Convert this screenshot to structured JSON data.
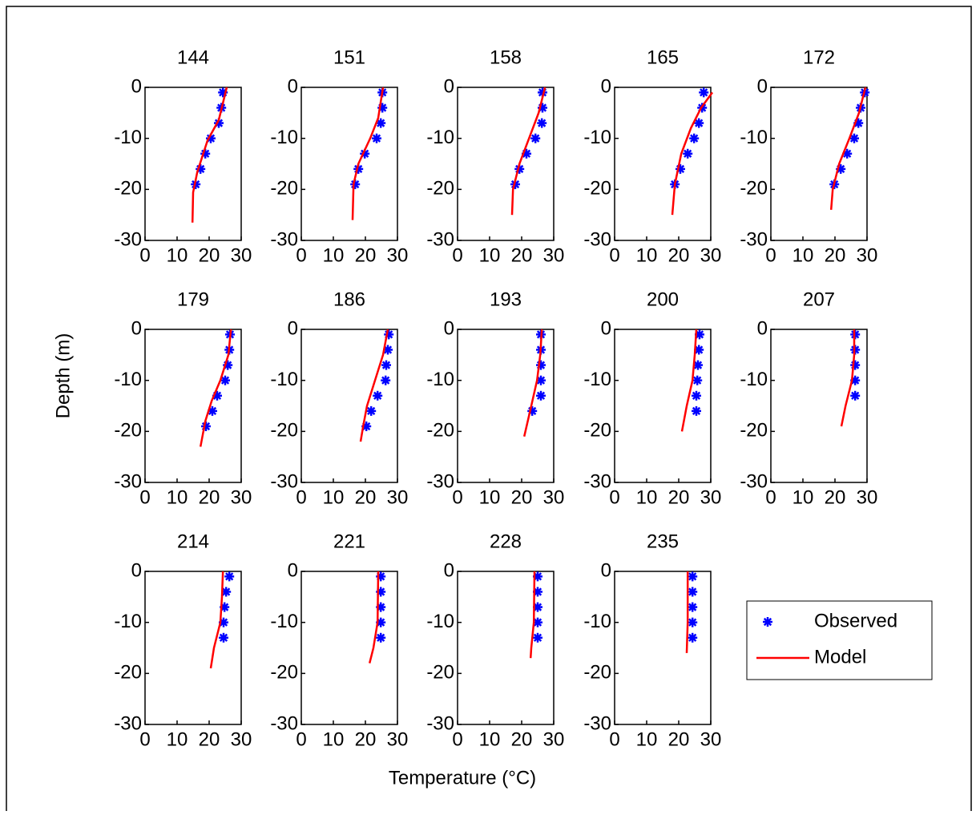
{
  "xlabel": "Temperature (°C)",
  "ylabel": "Depth (m)",
  "chart_data": [
    {
      "type": "line",
      "title": "144",
      "xlim": [
        0,
        30
      ],
      "ylim": [
        -30,
        0
      ],
      "xticks": [
        0,
        10,
        20,
        30
      ],
      "yticks": [
        -30,
        -20,
        -10,
        0
      ],
      "series": [
        {
          "name": "Observed",
          "type": "scatter",
          "color": "#0000ff",
          "x": [
            24.3,
            23.8,
            23,
            20.5,
            18.8,
            17.3,
            15.8
          ],
          "values": [
            -1,
            -4,
            -7,
            -10,
            -13,
            -16,
            -19
          ]
        },
        {
          "name": "Model",
          "type": "line",
          "color": "#ff0000",
          "x": [
            25.5,
            23,
            19.5,
            16.3,
            15,
            14.8
          ],
          "values": [
            0,
            -6.4,
            -10.4,
            -16.6,
            -20.6,
            -26.5
          ]
        }
      ]
    },
    {
      "type": "line",
      "title": "151",
      "xlim": [
        0,
        30
      ],
      "ylim": [
        -30,
        0
      ],
      "xticks": [
        0,
        10,
        20,
        30
      ],
      "yticks": [
        -30,
        -20,
        -10,
        0
      ],
      "series": [
        {
          "name": "Observed",
          "type": "scatter",
          "color": "#0000ff",
          "x": [
            25.3,
            25.3,
            24.8,
            23.5,
            19.8,
            17.8,
            16.8
          ],
          "values": [
            -1,
            -4,
            -7,
            -10,
            -13,
            -16,
            -19
          ]
        },
        {
          "name": "Model",
          "type": "line",
          "color": "#ff0000",
          "x": [
            25.5,
            24,
            21.5,
            17.8,
            16.3,
            16
          ],
          "values": [
            0,
            -6,
            -10,
            -15,
            -19,
            -26
          ]
        }
      ]
    },
    {
      "type": "line",
      "title": "158",
      "xlim": [
        0,
        30
      ],
      "ylim": [
        -30,
        0
      ],
      "xticks": [
        0,
        10,
        20,
        30
      ],
      "yticks": [
        -30,
        -20,
        -10,
        0
      ],
      "series": [
        {
          "name": "Observed",
          "type": "scatter",
          "color": "#0000ff",
          "x": [
            26.5,
            26.5,
            26.3,
            24.3,
            21.5,
            19.3,
            18
          ],
          "values": [
            -1,
            -4,
            -7,
            -10,
            -13,
            -16,
            -19
          ]
        },
        {
          "name": "Model",
          "type": "line",
          "color": "#ff0000",
          "x": [
            27.3,
            25.3,
            22.3,
            19.3,
            17.3,
            17
          ],
          "values": [
            0,
            -5,
            -10,
            -15,
            -20,
            -25
          ]
        }
      ]
    },
    {
      "type": "line",
      "title": "165",
      "xlim": [
        0,
        30
      ],
      "ylim": [
        -30,
        0
      ],
      "xticks": [
        0,
        10,
        20,
        30
      ],
      "yticks": [
        -30,
        -20,
        -10,
        0
      ],
      "series": [
        {
          "name": "Observed",
          "type": "scatter",
          "color": "#0000ff",
          "x": [
            27.8,
            27.3,
            26.3,
            24.8,
            22.8,
            20.5,
            18.8
          ],
          "values": [
            -1,
            -4,
            -7,
            -10,
            -13,
            -16,
            -19
          ]
        },
        {
          "name": "Model",
          "type": "line",
          "color": "#ff0000",
          "x": [
            30.5,
            27,
            23.8,
            20.8,
            18.8,
            18
          ],
          "values": [
            -1,
            -4,
            -8,
            -13,
            -19,
            -25
          ]
        }
      ]
    },
    {
      "type": "line",
      "title": "172",
      "xlim": [
        0,
        30
      ],
      "ylim": [
        -30,
        0
      ],
      "xticks": [
        0,
        10,
        20,
        30
      ],
      "yticks": [
        -30,
        -20,
        -10,
        0
      ],
      "series": [
        {
          "name": "Observed",
          "type": "scatter",
          "color": "#0000ff",
          "x": [
            29.3,
            28,
            27.3,
            26,
            23.8,
            21.8,
            19.8
          ],
          "values": [
            -1,
            -4,
            -7,
            -10,
            -13,
            -16,
            -19
          ]
        },
        {
          "name": "Model",
          "type": "line",
          "color": "#ff0000",
          "x": [
            29.5,
            27.5,
            24.5,
            21.3,
            19.3,
            18.8
          ],
          "values": [
            0,
            -5,
            -10,
            -15,
            -20,
            -24
          ]
        }
      ]
    },
    {
      "type": "line",
      "title": "179",
      "xlim": [
        0,
        30
      ],
      "ylim": [
        -30,
        0
      ],
      "xticks": [
        0,
        10,
        20,
        30
      ],
      "yticks": [
        -30,
        -20,
        -10,
        0
      ],
      "series": [
        {
          "name": "Observed",
          "type": "scatter",
          "color": "#0000ff",
          "x": [
            26.5,
            26.3,
            25.8,
            25,
            22.5,
            21,
            19
          ],
          "values": [
            -1,
            -4,
            -7,
            -10,
            -13,
            -16,
            -19
          ]
        },
        {
          "name": "Model",
          "type": "line",
          "color": "#ff0000",
          "x": [
            26.8,
            26,
            23.5,
            20.8,
            18.8,
            17.3
          ],
          "values": [
            0,
            -5,
            -10,
            -14,
            -18,
            -23
          ]
        }
      ]
    },
    {
      "type": "line",
      "title": "186",
      "xlim": [
        0,
        30
      ],
      "ylim": [
        -30,
        0
      ],
      "xticks": [
        0,
        10,
        20,
        30
      ],
      "yticks": [
        -30,
        -20,
        -10,
        0
      ],
      "series": [
        {
          "name": "Observed",
          "type": "scatter",
          "color": "#0000ff",
          "x": [
            27.3,
            27,
            26.5,
            26.3,
            23.8,
            21.8,
            20.3
          ],
          "values": [
            -1,
            -4,
            -7,
            -10,
            -13,
            -16,
            -19
          ]
        },
        {
          "name": "Model",
          "type": "line",
          "color": "#ff0000",
          "x": [
            27,
            25.5,
            23,
            20.5,
            19.3,
            18.5
          ],
          "values": [
            0,
            -5,
            -10,
            -15,
            -19,
            -22
          ]
        }
      ]
    },
    {
      "type": "line",
      "title": "193",
      "xlim": [
        0,
        30
      ],
      "ylim": [
        -30,
        0
      ],
      "xticks": [
        0,
        10,
        20,
        30
      ],
      "yticks": [
        -30,
        -20,
        -10,
        0
      ],
      "series": [
        {
          "name": "Observed",
          "type": "scatter",
          "color": "#0000ff",
          "x": [
            26,
            26,
            26,
            26,
            26,
            23.3
          ],
          "values": [
            -1,
            -4,
            -7,
            -10,
            -13,
            -16
          ]
        },
        {
          "name": "Model",
          "type": "line",
          "color": "#ff0000",
          "x": [
            26.3,
            25.8,
            24.8,
            23,
            20.8
          ],
          "values": [
            0,
            -5,
            -10,
            -15,
            -21
          ]
        }
      ]
    },
    {
      "type": "line",
      "title": "200",
      "xlim": [
        0,
        30
      ],
      "ylim": [
        -30,
        0
      ],
      "xticks": [
        0,
        10,
        20,
        30
      ],
      "yticks": [
        -30,
        -20,
        -10,
        0
      ],
      "series": [
        {
          "name": "Observed",
          "type": "scatter",
          "color": "#0000ff",
          "x": [
            26.5,
            26.3,
            26,
            25.8,
            25.5,
            25.5
          ],
          "values": [
            -1,
            -4,
            -7,
            -10,
            -13,
            -16
          ]
        },
        {
          "name": "Model",
          "type": "line",
          "color": "#ff0000",
          "x": [
            25.5,
            25,
            24.3,
            22.5,
            21
          ],
          "values": [
            0,
            -5,
            -10,
            -15,
            -20
          ]
        }
      ]
    },
    {
      "type": "line",
      "title": "207",
      "xlim": [
        0,
        30
      ],
      "ylim": [
        -30,
        0
      ],
      "xticks": [
        0,
        10,
        20,
        30
      ],
      "yticks": [
        -30,
        -20,
        -10,
        0
      ],
      "series": [
        {
          "name": "Observed",
          "type": "scatter",
          "color": "#0000ff",
          "x": [
            26.3,
            26.3,
            26.3,
            26.3,
            26.3
          ],
          "values": [
            -1,
            -4,
            -7,
            -10,
            -13
          ]
        },
        {
          "name": "Model",
          "type": "line",
          "color": "#ff0000",
          "x": [
            26,
            26,
            25.3,
            23.3,
            22
          ],
          "values": [
            0,
            -5,
            -10,
            -15,
            -19
          ]
        }
      ]
    },
    {
      "type": "line",
      "title": "214",
      "xlim": [
        0,
        30
      ],
      "ylim": [
        -30,
        0
      ],
      "xticks": [
        0,
        10,
        20,
        30
      ],
      "yticks": [
        -30,
        -20,
        -10,
        0
      ],
      "series": [
        {
          "name": "Observed",
          "type": "scatter",
          "color": "#0000ff",
          "x": [
            26.3,
            25.3,
            24.8,
            24.5,
            24.5
          ],
          "values": [
            -1,
            -4,
            -7,
            -10,
            -13
          ]
        },
        {
          "name": "Model",
          "type": "line",
          "color": "#ff0000",
          "x": [
            24.3,
            24,
            23.5,
            21.5,
            20.5
          ],
          "values": [
            0,
            -5,
            -10,
            -15,
            -19
          ]
        }
      ]
    },
    {
      "type": "line",
      "title": "221",
      "xlim": [
        0,
        30
      ],
      "ylim": [
        -30,
        0
      ],
      "xticks": [
        0,
        10,
        20,
        30
      ],
      "yticks": [
        -30,
        -20,
        -10,
        0
      ],
      "series": [
        {
          "name": "Observed",
          "type": "scatter",
          "color": "#0000ff",
          "x": [
            24.8,
            24.8,
            24.8,
            24.8,
            24.8
          ],
          "values": [
            -1,
            -4,
            -7,
            -10,
            -13
          ]
        },
        {
          "name": "Model",
          "type": "line",
          "color": "#ff0000",
          "x": [
            24,
            23.8,
            22.5,
            21.3
          ],
          "values": [
            0,
            -10,
            -15,
            -18
          ]
        }
      ]
    },
    {
      "type": "line",
      "title": "228",
      "xlim": [
        0,
        30
      ],
      "ylim": [
        -30,
        0
      ],
      "xticks": [
        0,
        10,
        20,
        30
      ],
      "yticks": [
        -30,
        -20,
        -10,
        0
      ],
      "series": [
        {
          "name": "Observed",
          "type": "scatter",
          "color": "#0000ff",
          "x": [
            25,
            25,
            25,
            25,
            25
          ],
          "values": [
            -1,
            -4,
            -7,
            -10,
            -13
          ]
        },
        {
          "name": "Model",
          "type": "line",
          "color": "#ff0000",
          "x": [
            24,
            23.8,
            23,
            22.8
          ],
          "values": [
            0,
            -10,
            -15,
            -17
          ]
        }
      ]
    },
    {
      "type": "line",
      "title": "235",
      "xlim": [
        0,
        30
      ],
      "ylim": [
        -30,
        0
      ],
      "xticks": [
        0,
        10,
        20,
        30
      ],
      "yticks": [
        -30,
        -20,
        -10,
        0
      ],
      "series": [
        {
          "name": "Observed",
          "type": "scatter",
          "color": "#0000ff",
          "x": [
            24.3,
            24.3,
            24.3,
            24.3,
            24.3
          ],
          "values": [
            -1,
            -4,
            -7,
            -10,
            -13
          ]
        },
        {
          "name": "Model",
          "type": "line",
          "color": "#ff0000",
          "x": [
            22.8,
            22.8,
            22.5
          ],
          "values": [
            0,
            -10,
            -16
          ]
        }
      ]
    }
  ]
}
